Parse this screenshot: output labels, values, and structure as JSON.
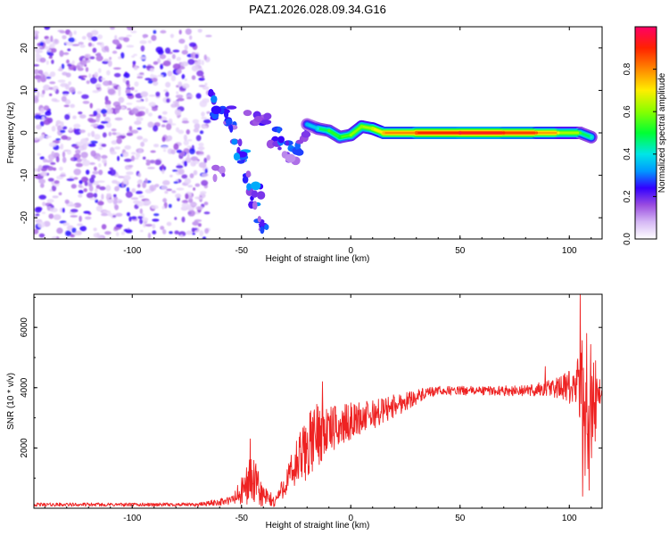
{
  "title": "PAZ1.2026.028.09.34.G16",
  "chart_data": [
    {
      "type": "heatmap",
      "xlabel": "Height of straight line (km)",
      "ylabel": "Frequency (Hz)",
      "xlim": [
        -145,
        115
      ],
      "ylim": [
        -25,
        25
      ],
      "xticks": [
        -100,
        -50,
        0,
        50,
        100
      ],
      "xtick_labels": [
        "-100",
        "-50",
        "0",
        "50",
        "100"
      ],
      "yticks": [
        -20,
        -10,
        0,
        10,
        20
      ],
      "ytick_labels": [
        "-20",
        "-10",
        "0",
        "10",
        "20"
      ],
      "colorbar": {
        "label": "Normalized spectral amplitude",
        "range": [
          0,
          1
        ],
        "ticks": [
          0.0,
          0.2,
          0.4,
          0.6,
          0.8
        ],
        "tick_labels": [
          "0.0",
          "0.2",
          "0.4",
          "0.6",
          "0.8"
        ]
      },
      "ridge": [
        {
          "x": -20,
          "y": 2,
          "amp": 0.35
        },
        {
          "x": -15,
          "y": 1,
          "amp": 0.4
        },
        {
          "x": -10,
          "y": 0.5,
          "amp": 0.55
        },
        {
          "x": -5,
          "y": -1,
          "amp": 0.5
        },
        {
          "x": 0,
          "y": -0.5,
          "amp": 0.6
        },
        {
          "x": 5,
          "y": 1.5,
          "amp": 0.6
        },
        {
          "x": 10,
          "y": 1,
          "amp": 0.65
        },
        {
          "x": 15,
          "y": 0,
          "amp": 0.75
        },
        {
          "x": 30,
          "y": 0,
          "amp": 0.85
        },
        {
          "x": 50,
          "y": 0,
          "amp": 0.95
        },
        {
          "x": 70,
          "y": 0,
          "amp": 0.9
        },
        {
          "x": 85,
          "y": 0,
          "amp": 0.85
        },
        {
          "x": 95,
          "y": 0,
          "amp": 0.7
        },
        {
          "x": 105,
          "y": 0,
          "amp": 0.55
        },
        {
          "x": 110,
          "y": -1,
          "amp": 0.4
        }
      ]
    },
    {
      "type": "line",
      "xlabel": "Height of straight line (km)",
      "ylabel": "SNR (10 * v/v)",
      "xlim": [
        -145,
        115
      ],
      "ylim": [
        0,
        7100
      ],
      "xticks": [
        -100,
        -50,
        0,
        50,
        100
      ],
      "xtick_labels": [
        "-100",
        "-50",
        "0",
        "50",
        "100"
      ],
      "yticks": [
        2000,
        4000,
        6000
      ],
      "ytick_labels": [
        "2000",
        "4000",
        "6000"
      ],
      "color": "#ee2222",
      "envelope": [
        {
          "x": -145,
          "mean": 120,
          "noise": 60
        },
        {
          "x": -70,
          "mean": 120,
          "noise": 60
        },
        {
          "x": -55,
          "mean": 250,
          "noise": 150
        },
        {
          "x": -50,
          "mean": 500,
          "noise": 500
        },
        {
          "x": -46,
          "mean": 1000,
          "noise": 800
        },
        {
          "x": -44,
          "mean": 800,
          "noise": 800
        },
        {
          "x": -40,
          "mean": 400,
          "noise": 400
        },
        {
          "x": -35,
          "mean": 200,
          "noise": 200
        },
        {
          "x": -30,
          "mean": 800,
          "noise": 400
        },
        {
          "x": -25,
          "mean": 1400,
          "noise": 900
        },
        {
          "x": -20,
          "mean": 2000,
          "noise": 1100
        },
        {
          "x": -15,
          "mean": 2500,
          "noise": 1100
        },
        {
          "x": -10,
          "mean": 2600,
          "noise": 800
        },
        {
          "x": -5,
          "mean": 2700,
          "noise": 700
        },
        {
          "x": 0,
          "mean": 2900,
          "noise": 600
        },
        {
          "x": 10,
          "mean": 3100,
          "noise": 500
        },
        {
          "x": 20,
          "mean": 3400,
          "noise": 400
        },
        {
          "x": 30,
          "mean": 3700,
          "noise": 250
        },
        {
          "x": 40,
          "mean": 3900,
          "noise": 150
        },
        {
          "x": 60,
          "mean": 3900,
          "noise": 150
        },
        {
          "x": 80,
          "mean": 3900,
          "noise": 180
        },
        {
          "x": 95,
          "mean": 4000,
          "noise": 350
        },
        {
          "x": 103,
          "mean": 4000,
          "noise": 700
        },
        {
          "x": 107,
          "mean": 3500,
          "noise": 2800
        },
        {
          "x": 110,
          "mean": 3500,
          "noise": 2200
        },
        {
          "x": 115,
          "mean": 3900,
          "noise": 150
        }
      ],
      "spikes": [
        {
          "x": -46,
          "y": 2300
        },
        {
          "x": -13,
          "y": 4200
        },
        {
          "x": 89,
          "y": 4700
        },
        {
          "x": 105,
          "y": 7100
        },
        {
          "x": 106,
          "y": 400
        },
        {
          "x": 108,
          "y": 5800
        },
        {
          "x": 109,
          "y": 600
        }
      ]
    }
  ]
}
